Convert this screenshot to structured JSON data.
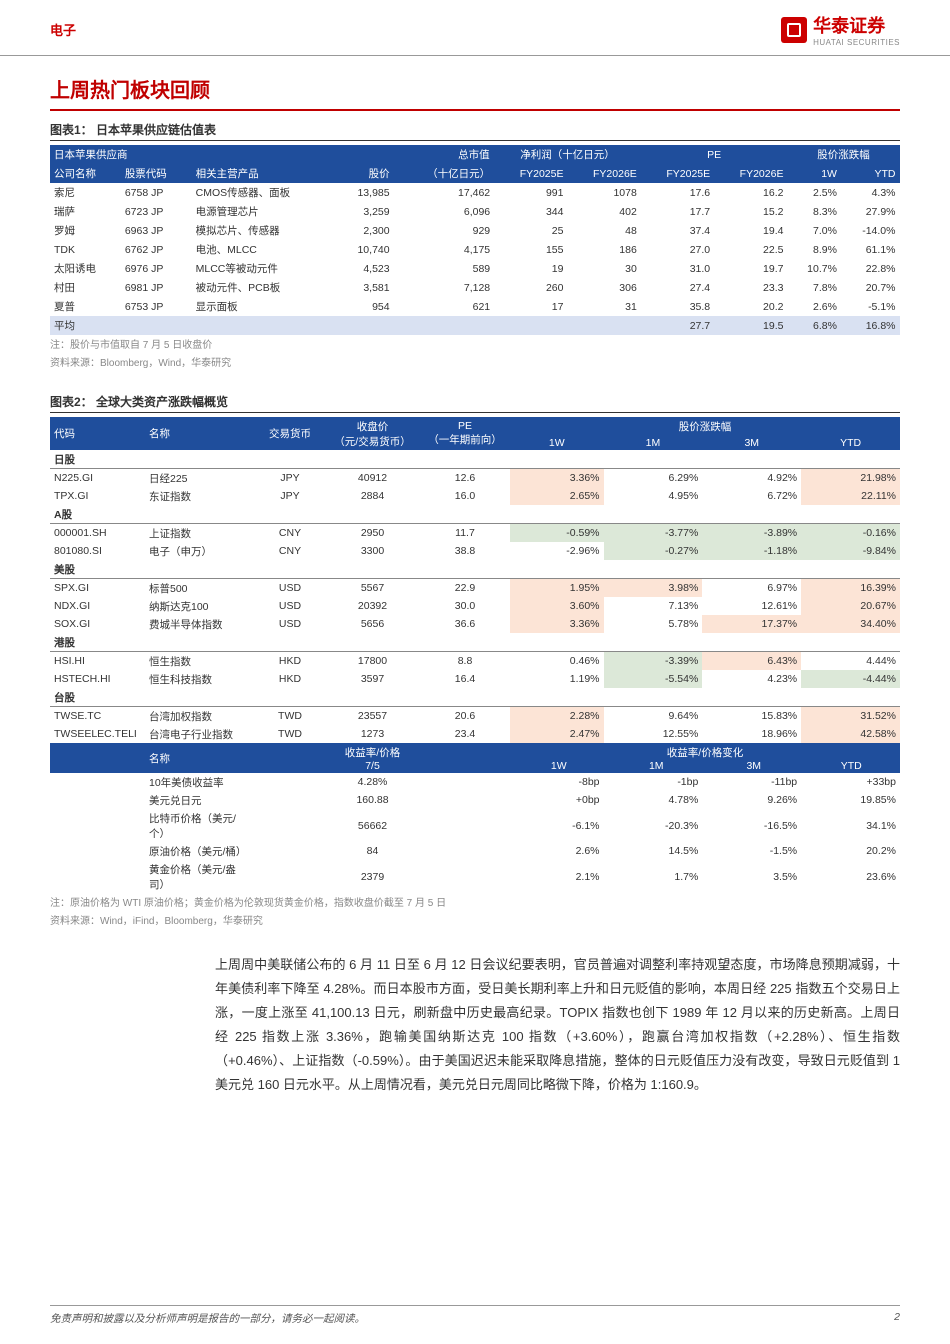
{
  "header": {
    "category": "电子",
    "brand": "华泰证券",
    "brand_sub": "HUATAI SECURITIES"
  },
  "section_title": "上周热门板块回顾",
  "table1": {
    "caption": "图表1： 日本苹果供应链估值表",
    "group_labels": {
      "supplier": "日本苹果供应商",
      "mcap": "总市值",
      "netprofit": "净利润（十亿日元）",
      "pe": "PE",
      "pricechg": "股价涨跌幅"
    },
    "cols": {
      "name": "公司名称",
      "code": "股票代码",
      "product": "相关主营产品",
      "price": "股价",
      "mcap": "（十亿日元）",
      "np25": "FY2025E",
      "np26": "FY2026E",
      "pe25": "FY2025E",
      "pe26": "FY2026E",
      "w1": "1W",
      "ytd": "YTD"
    },
    "rows": [
      {
        "name": "索尼",
        "code": "6758 JP",
        "product": "CMOS传感器、面板",
        "price": "13,985",
        "mcap": "17,462",
        "np25": "991",
        "np26": "1078",
        "pe25": "17.6",
        "pe26": "16.2",
        "w1": "2.5%",
        "ytd": "4.3%"
      },
      {
        "name": "瑞萨",
        "code": "6723 JP",
        "product": "电源管理芯片",
        "price": "3,259",
        "mcap": "6,096",
        "np25": "344",
        "np26": "402",
        "pe25": "17.7",
        "pe26": "15.2",
        "w1": "8.3%",
        "ytd": "27.9%"
      },
      {
        "name": "罗姆",
        "code": "6963 JP",
        "product": "模拟芯片、传感器",
        "price": "2,300",
        "mcap": "929",
        "np25": "25",
        "np26": "48",
        "pe25": "37.4",
        "pe26": "19.4",
        "w1": "7.0%",
        "ytd": "-14.0%"
      },
      {
        "name": "TDK",
        "code": "6762 JP",
        "product": "电池、MLCC",
        "price": "10,740",
        "mcap": "4,175",
        "np25": "155",
        "np26": "186",
        "pe25": "27.0",
        "pe26": "22.5",
        "w1": "8.9%",
        "ytd": "61.1%"
      },
      {
        "name": "太阳诱电",
        "code": "6976 JP",
        "product": "MLCC等被动元件",
        "price": "4,523",
        "mcap": "589",
        "np25": "19",
        "np26": "30",
        "pe25": "31.0",
        "pe26": "19.7",
        "w1": "10.7%",
        "ytd": "22.8%"
      },
      {
        "name": "村田",
        "code": "6981 JP",
        "product": "被动元件、PCB板",
        "price": "3,581",
        "mcap": "7,128",
        "np25": "260",
        "np26": "306",
        "pe25": "27.4",
        "pe26": "23.3",
        "w1": "7.8%",
        "ytd": "20.7%"
      },
      {
        "name": "夏普",
        "code": "6753 JP",
        "product": "显示面板",
        "price": "954",
        "mcap": "621",
        "np25": "17",
        "np26": "31",
        "pe25": "35.8",
        "pe26": "20.2",
        "w1": "2.6%",
        "ytd": "-5.1%"
      }
    ],
    "avg": {
      "name": "平均",
      "pe25": "27.7",
      "pe26": "19.5",
      "w1": "6.8%",
      "ytd": "16.8%"
    },
    "note1": "注：股价与市值取自 7 月 5 日收盘价",
    "note2": "资料来源：Bloomberg，Wind，华泰研究"
  },
  "table2": {
    "caption": "图表2： 全球大类资产涨跌幅概览",
    "cols": {
      "code": "代码",
      "name": "名称",
      "ccy": "交易货币",
      "close": "收盘价\n（元/交易货币）",
      "pe": "PE\n（一年期前向）",
      "chg_group": "股价涨跌幅",
      "w1": "1W",
      "m1": "1M",
      "m3": "3M",
      "ytd": "YTD"
    },
    "mid_cols": {
      "name": "名称",
      "close": "收益率/价格\n7/5",
      "chg_group": "收益率/价格变化",
      "w1": "1W",
      "m1": "1M",
      "m3": "3M",
      "ytd": "YTD"
    },
    "groups": {
      "jp": "日股",
      "cn": "A股",
      "us": "美股",
      "hk": "港股",
      "tw": "台股"
    },
    "rows_top": [
      {
        "grp": "jp"
      },
      {
        "code": "N225.GI",
        "name": "日经225",
        "ccy": "JPY",
        "close": "40912",
        "pe": "12.6",
        "w1": "3.36%",
        "m1": "6.29%",
        "m3": "4.92%",
        "ytd": "21.98%",
        "c": {
          "w1": "pos",
          "m1": "",
          "m3": "",
          "ytd": "pos"
        }
      },
      {
        "code": "TPX.GI",
        "name": "东证指数",
        "ccy": "JPY",
        "close": "2884",
        "pe": "16.0",
        "w1": "2.65%",
        "m1": "4.95%",
        "m3": "6.72%",
        "ytd": "22.11%",
        "c": {
          "w1": "pos",
          "m1": "",
          "m3": "",
          "ytd": "pos"
        }
      },
      {
        "grp": "cn"
      },
      {
        "code": "000001.SH",
        "name": "上证指数",
        "ccy": "CNY",
        "close": "2950",
        "pe": "11.7",
        "w1": "-0.59%",
        "m1": "-3.77%",
        "m3": "-3.89%",
        "ytd": "-0.16%",
        "c": {
          "w1": "neg",
          "m1": "neg",
          "m3": "neg",
          "ytd": "neg"
        }
      },
      {
        "code": "801080.SI",
        "name": "电子（申万）",
        "ccy": "CNY",
        "close": "3300",
        "pe": "38.8",
        "w1": "-2.96%",
        "m1": "-0.27%",
        "m3": "-1.18%",
        "ytd": "-9.84%",
        "c": {
          "w1": "",
          "m1": "neg",
          "m3": "neg",
          "ytd": "neg"
        }
      },
      {
        "grp": "us"
      },
      {
        "code": "SPX.GI",
        "name": "标普500",
        "ccy": "USD",
        "close": "5567",
        "pe": "22.9",
        "w1": "1.95%",
        "m1": "3.98%",
        "m3": "6.97%",
        "ytd": "16.39%",
        "c": {
          "w1": "pos",
          "m1": "pos",
          "m3": "",
          "ytd": "pos"
        }
      },
      {
        "code": "NDX.GI",
        "name": "纳斯达克100",
        "ccy": "USD",
        "close": "20392",
        "pe": "30.0",
        "w1": "3.60%",
        "m1": "7.13%",
        "m3": "12.61%",
        "ytd": "20.67%",
        "c": {
          "w1": "pos",
          "m1": "",
          "m3": "",
          "ytd": "pos"
        }
      },
      {
        "code": "SOX.GI",
        "name": "费城半导体指数",
        "ccy": "USD",
        "close": "5656",
        "pe": "36.6",
        "w1": "3.36%",
        "m1": "5.78%",
        "m3": "17.37%",
        "ytd": "34.40%",
        "c": {
          "w1": "pos",
          "m1": "",
          "m3": "pos",
          "ytd": "pos"
        }
      },
      {
        "grp": "hk"
      },
      {
        "code": "HSI.HI",
        "name": "恒生指数",
        "ccy": "HKD",
        "close": "17800",
        "pe": "8.8",
        "w1": "0.46%",
        "m1": "-3.39%",
        "m3": "6.43%",
        "ytd": "4.44%",
        "c": {
          "w1": "",
          "m1": "neg",
          "m3": "pos",
          "ytd": ""
        }
      },
      {
        "code": "HSTECH.HI",
        "name": "恒生科技指数",
        "ccy": "HKD",
        "close": "3597",
        "pe": "16.4",
        "w1": "1.19%",
        "m1": "-5.54%",
        "m3": "4.23%",
        "ytd": "-4.44%",
        "c": {
          "w1": "",
          "m1": "neg",
          "m3": "",
          "ytd": "neg"
        }
      },
      {
        "grp": "tw"
      },
      {
        "code": "TWSE.TC",
        "name": "台湾加权指数",
        "ccy": "TWD",
        "close": "23557",
        "pe": "20.6",
        "w1": "2.28%",
        "m1": "9.64%",
        "m3": "15.83%",
        "ytd": "31.52%",
        "c": {
          "w1": "pos",
          "m1": "",
          "m3": "",
          "ytd": "pos"
        }
      },
      {
        "code": "TWSEELEC.TELI",
        "name": "台湾电子行业指数",
        "ccy": "TWD",
        "close": "1273",
        "pe": "23.4",
        "w1": "2.47%",
        "m1": "12.55%",
        "m3": "18.96%",
        "ytd": "42.58%",
        "c": {
          "w1": "pos",
          "m1": "",
          "m3": "",
          "ytd": "pos"
        }
      }
    ],
    "rows_bot": [
      {
        "name": "10年美债收益率",
        "close": "4.28%",
        "w1": "-8bp",
        "m1": "-1bp",
        "m3": "-11bp",
        "ytd": "+33bp"
      },
      {
        "name": "美元兑日元",
        "close": "160.88",
        "w1": "+0bp",
        "m1": "4.78%",
        "m3": "9.26%",
        "ytd": "19.85%"
      },
      {
        "name": "比特币价格（美元/个）",
        "close": "56662",
        "w1": "-6.1%",
        "m1": "-20.3%",
        "m3": "-16.5%",
        "ytd": "34.1%"
      },
      {
        "name": "原油价格（美元/桶）",
        "close": "84",
        "w1": "2.6%",
        "m1": "14.5%",
        "m3": "-1.5%",
        "ytd": "20.2%"
      },
      {
        "name": "黄金价格（美元/盎司）",
        "close": "2379",
        "w1": "2.1%",
        "m1": "1.7%",
        "m3": "3.5%",
        "ytd": "23.6%"
      }
    ],
    "note1": "注：原油价格为 WTI 原油价格；黄金价格为伦敦现货黄金价格，指数收盘价截至 7 月 5 日",
    "note2": "资料来源：Wind，iFind，Bloomberg，华泰研究"
  },
  "body_text": "上周周中美联储公布的 6 月 11 日至 6 月 12 日会议纪要表明，官员普遍对调整利率持观望态度，市场降息预期减弱，十年美债利率下降至 4.28%。而日本股市方面，受日美长期利率上升和日元贬值的影响，本周日经 225 指数五个交易日上涨，一度上涨至 41,100.13 日元，刷新盘中历史最高纪录。TOPIX 指数也创下 1989 年 12 月以来的历史新高。上周日经 225 指数上涨 3.36%，跑输美国纳斯达克 100 指数（+3.60%），跑赢台湾加权指数（+2.28%）、恒生指数（+0.46%）、上证指数（-0.59%）。由于美国迟迟未能采取降息措施，整体的日元贬值压力没有改变，导致日元贬值到 1 美元兑 160 日元水平。从上周情况看，美元兑日元周同比略微下降，价格为 1:160.9。",
  "footer": {
    "disclaimer": "免责声明和披露以及分析师声明是报告的一部分，请务必一起阅读。",
    "page": "2"
  },
  "colors": {
    "brand": "#c00000",
    "hdr": "#1f4e9c",
    "avg_bg": "#d9e1f2",
    "pos": "#fce4d6",
    "neg": "#dce8d8"
  }
}
